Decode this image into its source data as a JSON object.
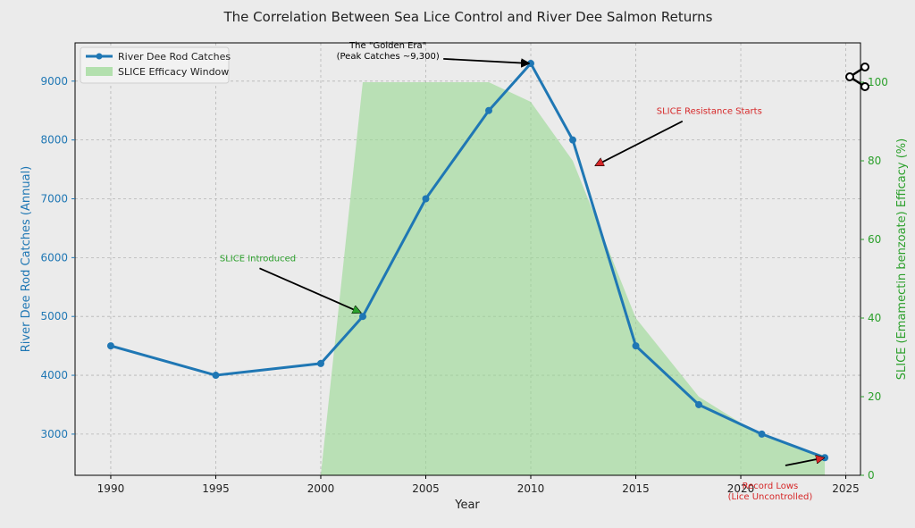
{
  "chart_data": {
    "type": "line",
    "title": "The Correlation Between Sea Lice Control and River Dee Salmon Returns",
    "xlabel": "Year",
    "ylabel_left": "River Dee Rod Catches (Annual)",
    "ylabel_right": "SLICE (Emamectin benzoate) Efficacy (%)",
    "xlim": [
      1988.3,
      2025.7
    ],
    "ylim_left": [
      2300,
      9650
    ],
    "ylim_right": [
      0,
      110
    ],
    "x_ticks": [
      1990,
      1995,
      2000,
      2005,
      2010,
      2015,
      2020,
      2025
    ],
    "y_left_ticks": [
      3000,
      4000,
      5000,
      6000,
      7000,
      8000,
      9000
    ],
    "y_right_ticks": [
      0,
      20,
      40,
      60,
      80,
      100
    ],
    "grid": true,
    "legend_position": "top-left",
    "colors": {
      "catches": "#1f77b4",
      "efficacy_fill": "#98d891",
      "left_axis": "#1f77b4",
      "right_axis": "#2ca02c",
      "annotation_green": "#2ca02c",
      "annotation_red": "#d62728"
    },
    "series": [
      {
        "name": "River Dee Rod Catches",
        "axis": "left",
        "x": [
          1990,
          1995,
          2000,
          2002,
          2005,
          2008,
          2010,
          2012,
          2015,
          2018,
          2021,
          2024
        ],
        "y": [
          4500,
          4000,
          4200,
          5000,
          7000,
          8500,
          9300,
          8000,
          4500,
          3500,
          3000,
          2600
        ]
      },
      {
        "name": "SLICE Efficacy Window",
        "axis": "right",
        "style": "area",
        "x": [
          2000,
          2002,
          2008,
          2010,
          2012,
          2015,
          2018,
          2021,
          2024
        ],
        "y": [
          0,
          100,
          100,
          95,
          80,
          40,
          20,
          10,
          5
        ]
      }
    ],
    "annotations": [
      {
        "text": "The \"Golden Era\"",
        "text2": "(Peak Catches ~9,300)",
        "x": 2010,
        "y": 9300,
        "text_x": 2003.2,
        "text_y": 9500,
        "color": "black"
      },
      {
        "text": "SLICE Resistance Starts",
        "text2": "",
        "x": 2013,
        "y": 7550,
        "text_x": 2018.5,
        "text_y": 8500,
        "color": "red"
      },
      {
        "text": "SLICE Introduced",
        "text2": "",
        "x": 2002,
        "y": 5050,
        "text_x": 1997,
        "text_y": 6000,
        "color": "green"
      },
      {
        "text": "Record Lows",
        "text2": "(Lice Uncontrolled)",
        "x": 2024,
        "y": 2600,
        "text_x": 2021.4,
        "text_y": 1950,
        "color": "red"
      }
    ]
  }
}
